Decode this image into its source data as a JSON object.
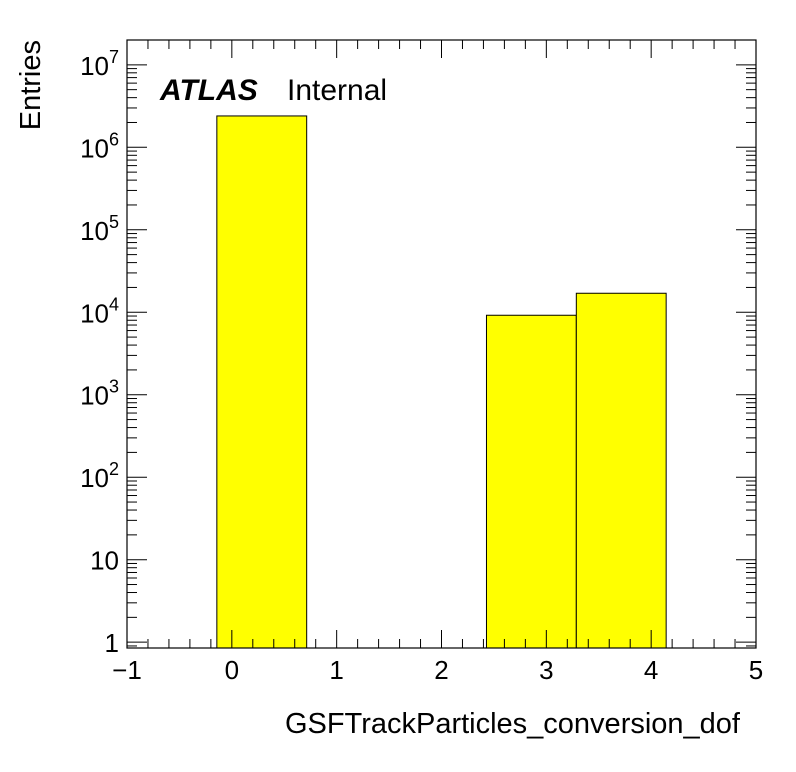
{
  "chart_data": {
    "type": "histogram",
    "title": "",
    "xlabel": "GSFTrackParticles_conversion_dof",
    "ylabel": "Entries",
    "xlim": [
      -1,
      5
    ],
    "ylim": [
      0.85,
      20000000
    ],
    "yscale": "log",
    "grid": false,
    "legend": "none",
    "x_tick_labels": [
      "−1",
      "0",
      "1",
      "2",
      "3",
      "4",
      "5"
    ],
    "y_tick_labels": [
      {
        "base": "1",
        "exp": ""
      },
      {
        "base": "10",
        "exp": ""
      },
      {
        "base": "10",
        "exp": "2"
      },
      {
        "base": "10",
        "exp": "3"
      },
      {
        "base": "10",
        "exp": "4"
      },
      {
        "base": "10",
        "exp": "5"
      },
      {
        "base": "10",
        "exp": "6"
      },
      {
        "base": "10",
        "exp": "7"
      }
    ],
    "bins": [
      {
        "x0": -0.143,
        "x1": 0.714,
        "value": 2400000
      },
      {
        "x0": 0.714,
        "x1": 1.571,
        "value": 0
      },
      {
        "x0": 1.571,
        "x1": 2.429,
        "value": 0
      },
      {
        "x0": 2.429,
        "x1": 3.286,
        "value": 9200
      },
      {
        "x0": 3.286,
        "x1": 4.143,
        "value": 17000
      }
    ],
    "fill_color": "#ffff00",
    "edge_color": "#000000"
  },
  "annotation": {
    "atlas": "ATLAS",
    "status": "Internal"
  }
}
